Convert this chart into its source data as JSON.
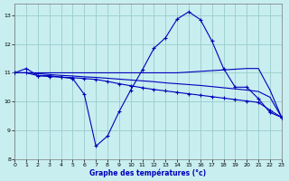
{
  "xlabel": "Graphe des températures (°c)",
  "background_color": "#c8eef0",
  "grid_color": "#99cccc",
  "line_color": "#0000bb",
  "xlim": [
    0,
    23
  ],
  "ylim": [
    8,
    13.4
  ],
  "yticks": [
    8,
    9,
    10,
    11,
    12,
    13
  ],
  "xticks": [
    0,
    1,
    2,
    3,
    4,
    5,
    6,
    7,
    8,
    9,
    10,
    11,
    12,
    13,
    14,
    15,
    16,
    17,
    18,
    19,
    20,
    21,
    22,
    23
  ],
  "line1_x": [
    0,
    1,
    2,
    3,
    4,
    5,
    6,
    7,
    8,
    9,
    10,
    11,
    12,
    13,
    14,
    15,
    16,
    17,
    18,
    19,
    20,
    21,
    22,
    23
  ],
  "line1_y": [
    11.0,
    11.15,
    10.9,
    10.9,
    10.85,
    10.8,
    10.25,
    8.45,
    8.8,
    9.65,
    10.4,
    11.1,
    11.85,
    12.22,
    12.87,
    13.12,
    12.85,
    12.1,
    11.15,
    10.5,
    10.5,
    10.1,
    9.62,
    9.45
  ],
  "line2_x": [
    0,
    1,
    2,
    3,
    4,
    5,
    6,
    7,
    8,
    9,
    10,
    11,
    12,
    13,
    14,
    15,
    16,
    17,
    18,
    19,
    20,
    21,
    22,
    23
  ],
  "line2_y": [
    11.0,
    11.0,
    10.9,
    10.87,
    10.85,
    10.83,
    10.8,
    10.77,
    10.7,
    10.62,
    10.55,
    10.48,
    10.42,
    10.37,
    10.32,
    10.27,
    10.22,
    10.17,
    10.12,
    10.07,
    10.02,
    9.97,
    9.7,
    9.45
  ],
  "line3_x": [
    0,
    1,
    2,
    3,
    4,
    5,
    6,
    7,
    8,
    9,
    10,
    11,
    12,
    13,
    14,
    15,
    16,
    17,
    18,
    19,
    20,
    21,
    22,
    23
  ],
  "line3_y": [
    11.0,
    11.0,
    10.97,
    10.94,
    10.91,
    10.89,
    10.86,
    10.84,
    10.81,
    10.78,
    10.75,
    10.72,
    10.69,
    10.65,
    10.62,
    10.59,
    10.56,
    10.52,
    10.48,
    10.44,
    10.4,
    10.35,
    10.15,
    9.45
  ],
  "line4_x": [
    0,
    10,
    14,
    16,
    20,
    21,
    22,
    23
  ],
  "line4_y": [
    11.0,
    11.0,
    11.0,
    11.05,
    11.15,
    11.15,
    10.4,
    9.45
  ]
}
